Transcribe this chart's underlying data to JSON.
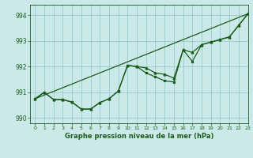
{
  "xlabel": "Graphe pression niveau de la mer (hPa)",
  "ylim": [
    989.8,
    994.4
  ],
  "xlim": [
    -0.5,
    23
  ],
  "yticks": [
    990,
    991,
    992,
    993,
    994
  ],
  "xticks": [
    0,
    1,
    2,
    3,
    4,
    5,
    6,
    7,
    8,
    9,
    10,
    11,
    12,
    13,
    14,
    15,
    16,
    17,
    18,
    19,
    20,
    21,
    22,
    23
  ],
  "bg_color": "#cce9e9",
  "grid_color": "#99cccc",
  "line_color": "#1a5c1a",
  "line1_x": [
    0,
    1,
    2,
    3,
    4,
    5,
    6,
    7,
    8,
    9,
    10,
    11,
    12,
    13,
    14,
    15,
    16,
    17,
    18,
    19,
    20,
    21,
    22,
    23
  ],
  "line1_y": [
    990.75,
    991.0,
    990.72,
    990.72,
    990.62,
    990.35,
    990.35,
    990.6,
    990.75,
    991.05,
    992.05,
    992.0,
    991.95,
    991.75,
    991.7,
    991.55,
    992.65,
    992.55,
    992.85,
    992.95,
    993.05,
    993.15,
    993.6,
    994.05
  ],
  "line2_x": [
    0,
    1,
    2,
    3,
    4,
    5,
    6,
    7,
    8,
    9,
    10,
    11,
    12,
    13,
    14,
    15,
    16,
    17,
    18,
    19,
    20,
    21,
    22,
    23
  ],
  "line2_y": [
    990.75,
    991.0,
    990.72,
    990.72,
    990.62,
    990.35,
    990.35,
    990.6,
    990.75,
    991.05,
    992.05,
    992.0,
    991.75,
    991.6,
    991.45,
    991.4,
    992.65,
    992.2,
    992.85,
    992.95,
    993.05,
    993.15,
    993.6,
    994.05
  ],
  "trend_x": [
    0,
    23
  ],
  "trend_y": [
    990.75,
    994.05
  ]
}
